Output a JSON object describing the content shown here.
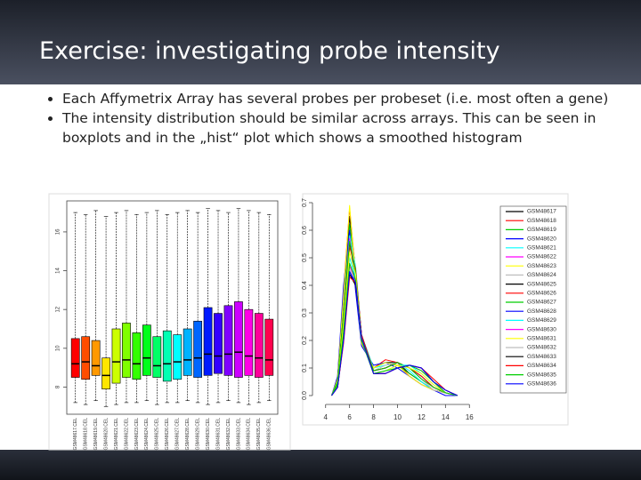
{
  "slide": {
    "title": "Exercise: investigating probe intensity",
    "bullets": [
      "Each Affymetrix Array has several probes per probeset (i.e. most often a gene)",
      "The intensity distribution should be similar across arrays. This can be seen in boxplots and in the „hist“ plot which shows a smoothed histogram"
    ]
  },
  "chart_data": [
    {
      "type": "box",
      "categories": [
        "GSM48617.CEL",
        "GSM48618.CEL",
        "GSM48619.CEL",
        "GSM48620.CEL",
        "GSM48621.CEL",
        "GSM48622.CEL",
        "GSM48623.CEL",
        "GSM48624.CEL",
        "GSM48625.CEL",
        "GSM48626.CEL",
        "GSM48627.CEL",
        "GSM48628.CEL",
        "GSM48629.CEL",
        "GSM48630.CEL",
        "GSM48631.CEL",
        "GSM48632.CEL",
        "GSM48633.CEL",
        "GSM48634.CEL",
        "GSM48635.CEL",
        "GSM48636.CEL"
      ],
      "colors": [
        "#ff0000",
        "#ff4d00",
        "#ff9900",
        "#ffe600",
        "#ccff00",
        "#80ff00",
        "#33ff00",
        "#00ff1a",
        "#00ff66",
        "#00ffb3",
        "#00ffff",
        "#00b3ff",
        "#0066ff",
        "#001aff",
        "#3300ff",
        "#8000ff",
        "#cc00ff",
        "#ff00e6",
        "#ff0099",
        "#ff004d"
      ],
      "lower": [
        7.2,
        7.1,
        7.3,
        7.0,
        7.1,
        7.2,
        7.2,
        7.3,
        7.1,
        7.2,
        7.2,
        7.3,
        7.2,
        7.1,
        7.2,
        7.3,
        7.2,
        7.1,
        7.2,
        7.3
      ],
      "q1": [
        8.5,
        8.4,
        8.6,
        7.9,
        8.2,
        8.5,
        8.4,
        8.6,
        8.5,
        8.3,
        8.4,
        8.6,
        8.5,
        8.6,
        8.7,
        8.6,
        8.5,
        8.6,
        8.5,
        8.6
      ],
      "median": [
        9.2,
        9.3,
        9.1,
        8.6,
        9.3,
        9.4,
        9.2,
        9.5,
        9.1,
        9.2,
        9.3,
        9.4,
        9.5,
        9.7,
        9.6,
        9.7,
        9.8,
        9.6,
        9.5,
        9.4
      ],
      "q3": [
        10.5,
        10.6,
        10.4,
        9.5,
        11.0,
        11.3,
        10.8,
        11.2,
        10.6,
        10.9,
        10.7,
        11.0,
        11.4,
        12.1,
        11.8,
        12.2,
        12.4,
        12.0,
        11.8,
        11.5
      ],
      "upper": [
        17.0,
        16.9,
        17.1,
        16.8,
        17.0,
        17.1,
        16.9,
        17.0,
        17.1,
        16.9,
        17.0,
        17.1,
        17.0,
        17.2,
        17.1,
        17.0,
        17.2,
        17.1,
        17.0,
        16.9
      ],
      "ylim": [
        6.6,
        17.6
      ],
      "yticks": [
        8,
        10,
        12,
        14,
        16
      ]
    },
    {
      "type": "line",
      "x": [
        4.5,
        5,
        5.5,
        6,
        6.5,
        7,
        8,
        9,
        10,
        11,
        12,
        13,
        14,
        15
      ],
      "series": [
        {
          "name": "GSM48617",
          "color": "#000000",
          "values": [
            0.0,
            0.05,
            0.35,
            0.65,
            0.45,
            0.2,
            0.1,
            0.12,
            0.12,
            0.08,
            0.05,
            0.02,
            0.01,
            0.0
          ]
        },
        {
          "name": "GSM48618",
          "color": "#ff0000",
          "values": [
            0.0,
            0.06,
            0.38,
            0.68,
            0.44,
            0.19,
            0.1,
            0.13,
            0.12,
            0.07,
            0.04,
            0.02,
            0.01,
            0.0
          ]
        },
        {
          "name": "GSM48619",
          "color": "#00cd00",
          "values": [
            0.0,
            0.05,
            0.33,
            0.62,
            0.46,
            0.21,
            0.1,
            0.12,
            0.11,
            0.08,
            0.05,
            0.02,
            0.01,
            0.0
          ]
        },
        {
          "name": "GSM48620",
          "color": "#0000ff",
          "values": [
            0.0,
            0.07,
            0.4,
            0.6,
            0.38,
            0.18,
            0.11,
            0.12,
            0.1,
            0.07,
            0.04,
            0.02,
            0.0,
            0.0
          ]
        },
        {
          "name": "GSM48621",
          "color": "#00ffff",
          "values": [
            0.0,
            0.04,
            0.3,
            0.58,
            0.47,
            0.22,
            0.1,
            0.11,
            0.12,
            0.09,
            0.05,
            0.02,
            0.01,
            0.0
          ]
        },
        {
          "name": "GSM48622",
          "color": "#ff00ff",
          "values": [
            0.0,
            0.05,
            0.32,
            0.57,
            0.45,
            0.22,
            0.09,
            0.1,
            0.12,
            0.1,
            0.06,
            0.02,
            0.01,
            0.0
          ]
        },
        {
          "name": "GSM48623",
          "color": "#ffff00",
          "values": [
            0.0,
            0.06,
            0.36,
            0.69,
            0.42,
            0.19,
            0.1,
            0.12,
            0.11,
            0.07,
            0.04,
            0.02,
            0.01,
            0.0
          ]
        },
        {
          "name": "GSM48624",
          "color": "#bebebe",
          "values": [
            0.0,
            0.05,
            0.31,
            0.56,
            0.46,
            0.21,
            0.09,
            0.11,
            0.12,
            0.1,
            0.06,
            0.02,
            0.01,
            0.0
          ]
        },
        {
          "name": "GSM48625",
          "color": "#000000",
          "values": [
            0.0,
            0.05,
            0.3,
            0.55,
            0.45,
            0.22,
            0.09,
            0.1,
            0.12,
            0.1,
            0.07,
            0.03,
            0.01,
            0.0
          ]
        },
        {
          "name": "GSM48626",
          "color": "#ff0000",
          "values": [
            0.0,
            0.04,
            0.29,
            0.54,
            0.46,
            0.22,
            0.09,
            0.1,
            0.12,
            0.1,
            0.07,
            0.03,
            0.01,
            0.0
          ]
        },
        {
          "name": "GSM48627",
          "color": "#00cd00",
          "values": [
            0.0,
            0.05,
            0.3,
            0.56,
            0.45,
            0.21,
            0.09,
            0.1,
            0.12,
            0.1,
            0.06,
            0.03,
            0.01,
            0.0
          ]
        },
        {
          "name": "GSM48628",
          "color": "#0000ff",
          "values": [
            0.0,
            0.03,
            0.2,
            0.45,
            0.4,
            0.2,
            0.08,
            0.08,
            0.1,
            0.11,
            0.1,
            0.05,
            0.01,
            0.0
          ]
        },
        {
          "name": "GSM48629",
          "color": "#00ffff",
          "values": [
            0.0,
            0.04,
            0.24,
            0.5,
            0.43,
            0.21,
            0.08,
            0.09,
            0.11,
            0.11,
            0.08,
            0.04,
            0.01,
            0.0
          ]
        },
        {
          "name": "GSM48630",
          "color": "#ff00ff",
          "values": [
            0.0,
            0.03,
            0.22,
            0.47,
            0.42,
            0.2,
            0.08,
            0.08,
            0.1,
            0.11,
            0.09,
            0.05,
            0.01,
            0.0
          ]
        },
        {
          "name": "GSM48631",
          "color": "#ffff00",
          "values": [
            0.0,
            0.04,
            0.26,
            0.52,
            0.44,
            0.21,
            0.08,
            0.09,
            0.11,
            0.1,
            0.08,
            0.04,
            0.01,
            0.0
          ]
        },
        {
          "name": "GSM48632",
          "color": "#bebebe",
          "values": [
            0.0,
            0.03,
            0.21,
            0.46,
            0.41,
            0.2,
            0.08,
            0.08,
            0.1,
            0.11,
            0.1,
            0.05,
            0.01,
            0.0
          ]
        },
        {
          "name": "GSM48633",
          "color": "#000000",
          "values": [
            0.0,
            0.03,
            0.2,
            0.44,
            0.4,
            0.21,
            0.08,
            0.08,
            0.1,
            0.11,
            0.1,
            0.05,
            0.02,
            0.0
          ]
        },
        {
          "name": "GSM48634",
          "color": "#ff0000",
          "values": [
            0.0,
            0.03,
            0.19,
            0.43,
            0.41,
            0.21,
            0.08,
            0.08,
            0.1,
            0.11,
            0.1,
            0.06,
            0.02,
            0.0
          ]
        },
        {
          "name": "GSM48635",
          "color": "#00cd00",
          "values": [
            0.0,
            0.04,
            0.23,
            0.48,
            0.42,
            0.2,
            0.08,
            0.09,
            0.1,
            0.11,
            0.09,
            0.05,
            0.01,
            0.0
          ]
        },
        {
          "name": "GSM48636",
          "color": "#0000ff",
          "values": [
            0.0,
            0.03,
            0.2,
            0.45,
            0.41,
            0.21,
            0.08,
            0.08,
            0.1,
            0.11,
            0.1,
            0.05,
            0.02,
            0.0
          ]
        }
      ],
      "xlim": [
        3.5,
        16.5
      ],
      "xticks": [
        4,
        6,
        8,
        10,
        12,
        14,
        16
      ],
      "ylim": [
        0,
        0.7
      ],
      "yticks": [
        {
          "value": 0,
          "label": "0.0"
        },
        0.1,
        0.2,
        0.3,
        0.4,
        0.5,
        0.6,
        0.7
      ]
    }
  ]
}
